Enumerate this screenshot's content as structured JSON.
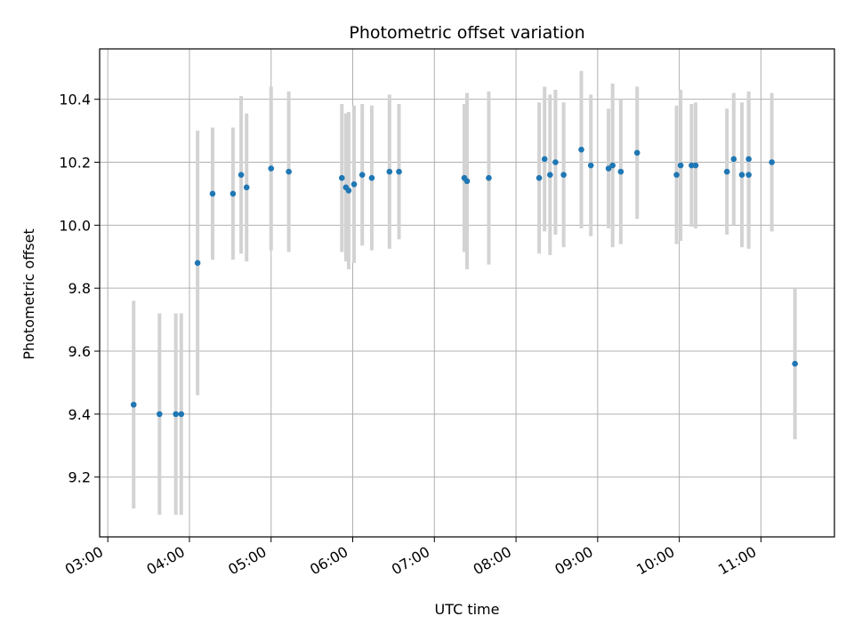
{
  "chart_data": {
    "type": "scatter",
    "title": "Photometric offset variation",
    "xlabel": "UTC time",
    "ylabel": "Photometric offset",
    "xlim": [
      "02:54",
      "11:54"
    ],
    "ylim": [
      9.01,
      10.56
    ],
    "x_ticks": [
      "03:00",
      "04:00",
      "05:00",
      "06:00",
      "07:00",
      "08:00",
      "09:00",
      "10:00",
      "11:00"
    ],
    "y_ticks": [
      9.2,
      9.4,
      9.6,
      9.8,
      10.0,
      10.2,
      10.4
    ],
    "y_tick_labels": [
      "9.2",
      "9.4",
      "9.6",
      "9.8",
      "10.0",
      "10.2",
      "10.4"
    ],
    "grid": true,
    "colors": {
      "points": "#1f77b4",
      "error_bars": "#d3d3d3",
      "grid": "#b0b0b0",
      "axes": "#000000"
    },
    "series": [
      {
        "points": [
          {
            "x": "03:19",
            "y": 9.43,
            "err": 0.33
          },
          {
            "x": "03:38",
            "y": 9.4,
            "err": 0.32
          },
          {
            "x": "03:50",
            "y": 9.4,
            "err": 0.32
          },
          {
            "x": "03:54",
            "y": 9.4,
            "err": 0.32
          },
          {
            "x": "04:06",
            "y": 9.88,
            "err": 0.42
          },
          {
            "x": "04:17",
            "y": 10.1,
            "err": 0.21
          },
          {
            "x": "04:32",
            "y": 10.1,
            "err": 0.21
          },
          {
            "x": "04:38",
            "y": 10.16,
            "err": 0.25
          },
          {
            "x": "04:42",
            "y": 10.12,
            "err": 0.235
          },
          {
            "x": "05:00",
            "y": 10.18,
            "err": 0.26
          },
          {
            "x": "05:13",
            "y": 10.17,
            "err": 0.255
          },
          {
            "x": "05:52",
            "y": 10.15,
            "err": 0.235
          },
          {
            "x": "05:55",
            "y": 10.12,
            "err": 0.235
          },
          {
            "x": "05:57",
            "y": 10.11,
            "err": 0.25
          },
          {
            "x": "06:01",
            "y": 10.13,
            "err": 0.25
          },
          {
            "x": "06:07",
            "y": 10.16,
            "err": 0.225
          },
          {
            "x": "06:14",
            "y": 10.15,
            "err": 0.23
          },
          {
            "x": "06:27",
            "y": 10.17,
            "err": 0.245
          },
          {
            "x": "06:34",
            "y": 10.17,
            "err": 0.215
          },
          {
            "x": "07:22",
            "y": 10.15,
            "err": 0.235
          },
          {
            "x": "07:24",
            "y": 10.14,
            "err": 0.28
          },
          {
            "x": "07:40",
            "y": 10.15,
            "err": 0.275
          },
          {
            "x": "08:17",
            "y": 10.15,
            "err": 0.24
          },
          {
            "x": "08:21",
            "y": 10.21,
            "err": 0.23
          },
          {
            "x": "08:25",
            "y": 10.16,
            "err": 0.255
          },
          {
            "x": "08:29",
            "y": 10.2,
            "err": 0.23
          },
          {
            "x": "08:35",
            "y": 10.16,
            "err": 0.23
          },
          {
            "x": "08:48",
            "y": 10.24,
            "err": 0.25
          },
          {
            "x": "08:55",
            "y": 10.19,
            "err": 0.225
          },
          {
            "x": "09:08",
            "y": 10.18,
            "err": 0.19
          },
          {
            "x": "09:11",
            "y": 10.19,
            "err": 0.26
          },
          {
            "x": "09:17",
            "y": 10.17,
            "err": 0.23
          },
          {
            "x": "09:29",
            "y": 10.23,
            "err": 0.21
          },
          {
            "x": "09:58",
            "y": 10.16,
            "err": 0.22
          },
          {
            "x": "10:01",
            "y": 10.19,
            "err": 0.24
          },
          {
            "x": "10:09",
            "y": 10.19,
            "err": 0.195
          },
          {
            "x": "10:12",
            "y": 10.19,
            "err": 0.2
          },
          {
            "x": "10:35",
            "y": 10.17,
            "err": 0.2
          },
          {
            "x": "10:40",
            "y": 10.21,
            "err": 0.21
          },
          {
            "x": "10:46",
            "y": 10.16,
            "err": 0.23
          },
          {
            "x": "10:51",
            "y": 10.16,
            "err": 0.235
          },
          {
            "x": "10:51",
            "y": 10.21,
            "err": 0.215
          },
          {
            "x": "11:08",
            "y": 10.2,
            "err": 0.22
          },
          {
            "x": "11:25",
            "y": 9.56,
            "err": 0.24
          }
        ]
      }
    ]
  }
}
